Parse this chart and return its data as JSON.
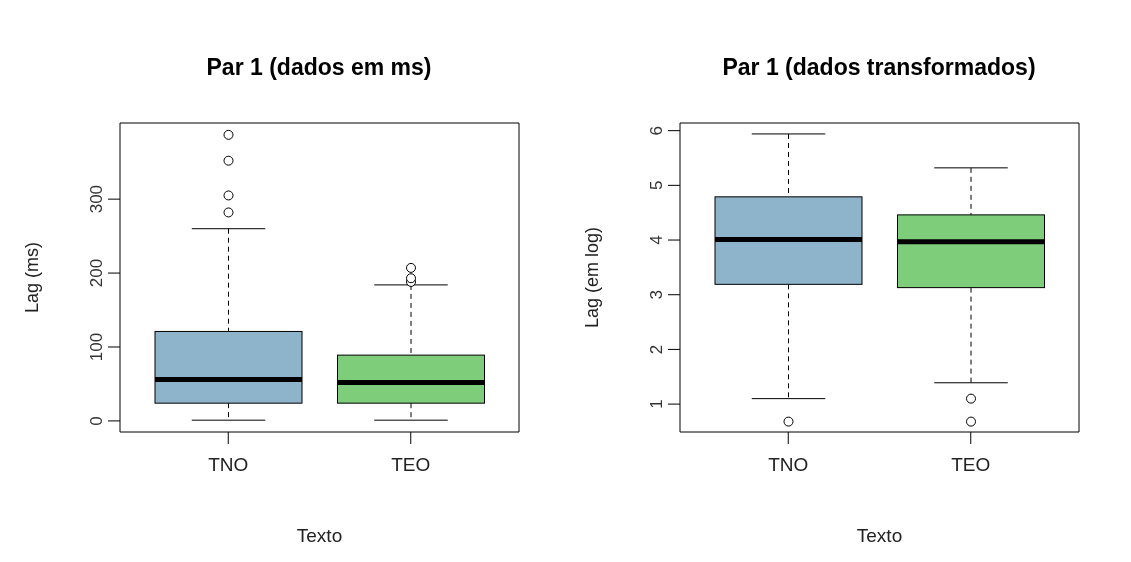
{
  "chart_data": [
    {
      "type": "box",
      "title": "Par 1 (dados em ms)",
      "xlabel": "Texto",
      "ylabel": "Lag (ms)",
      "categories": [
        "TNO",
        "TEO"
      ],
      "colors": [
        "#8db4cb",
        "#7dcd7a"
      ],
      "boxes": [
        {
          "low": 1,
          "q1": 24,
          "median": 56,
          "q3": 121,
          "high": 260,
          "outliers": [
            282,
            305,
            352,
            387
          ]
        },
        {
          "low": 1,
          "q1": 24,
          "median": 52,
          "q3": 89,
          "high": 184,
          "outliers": [
            188,
            193,
            207
          ]
        }
      ],
      "ylim": [
        -15,
        403
      ],
      "yticks": [
        0,
        100,
        200,
        300
      ]
    },
    {
      "type": "box",
      "title": "Par 1 (dados transformados)",
      "xlabel": "Texto",
      "ylabel": "Lag (em log)",
      "categories": [
        "TNO",
        "TEO"
      ],
      "colors": [
        "#8db4cb",
        "#7dcd7a"
      ],
      "boxes": [
        {
          "low": 1.1,
          "q1": 3.19,
          "median": 4.01,
          "q3": 4.79,
          "high": 5.94,
          "outliers": [
            0.68
          ]
        },
        {
          "low": 1.39,
          "q1": 3.13,
          "median": 3.97,
          "q3": 4.46,
          "high": 5.32,
          "outliers": [
            1.1,
            0.68
          ]
        }
      ],
      "ylim": [
        0.49,
        6.14
      ],
      "yticks": [
        1,
        2,
        3,
        4,
        5,
        6
      ]
    }
  ]
}
